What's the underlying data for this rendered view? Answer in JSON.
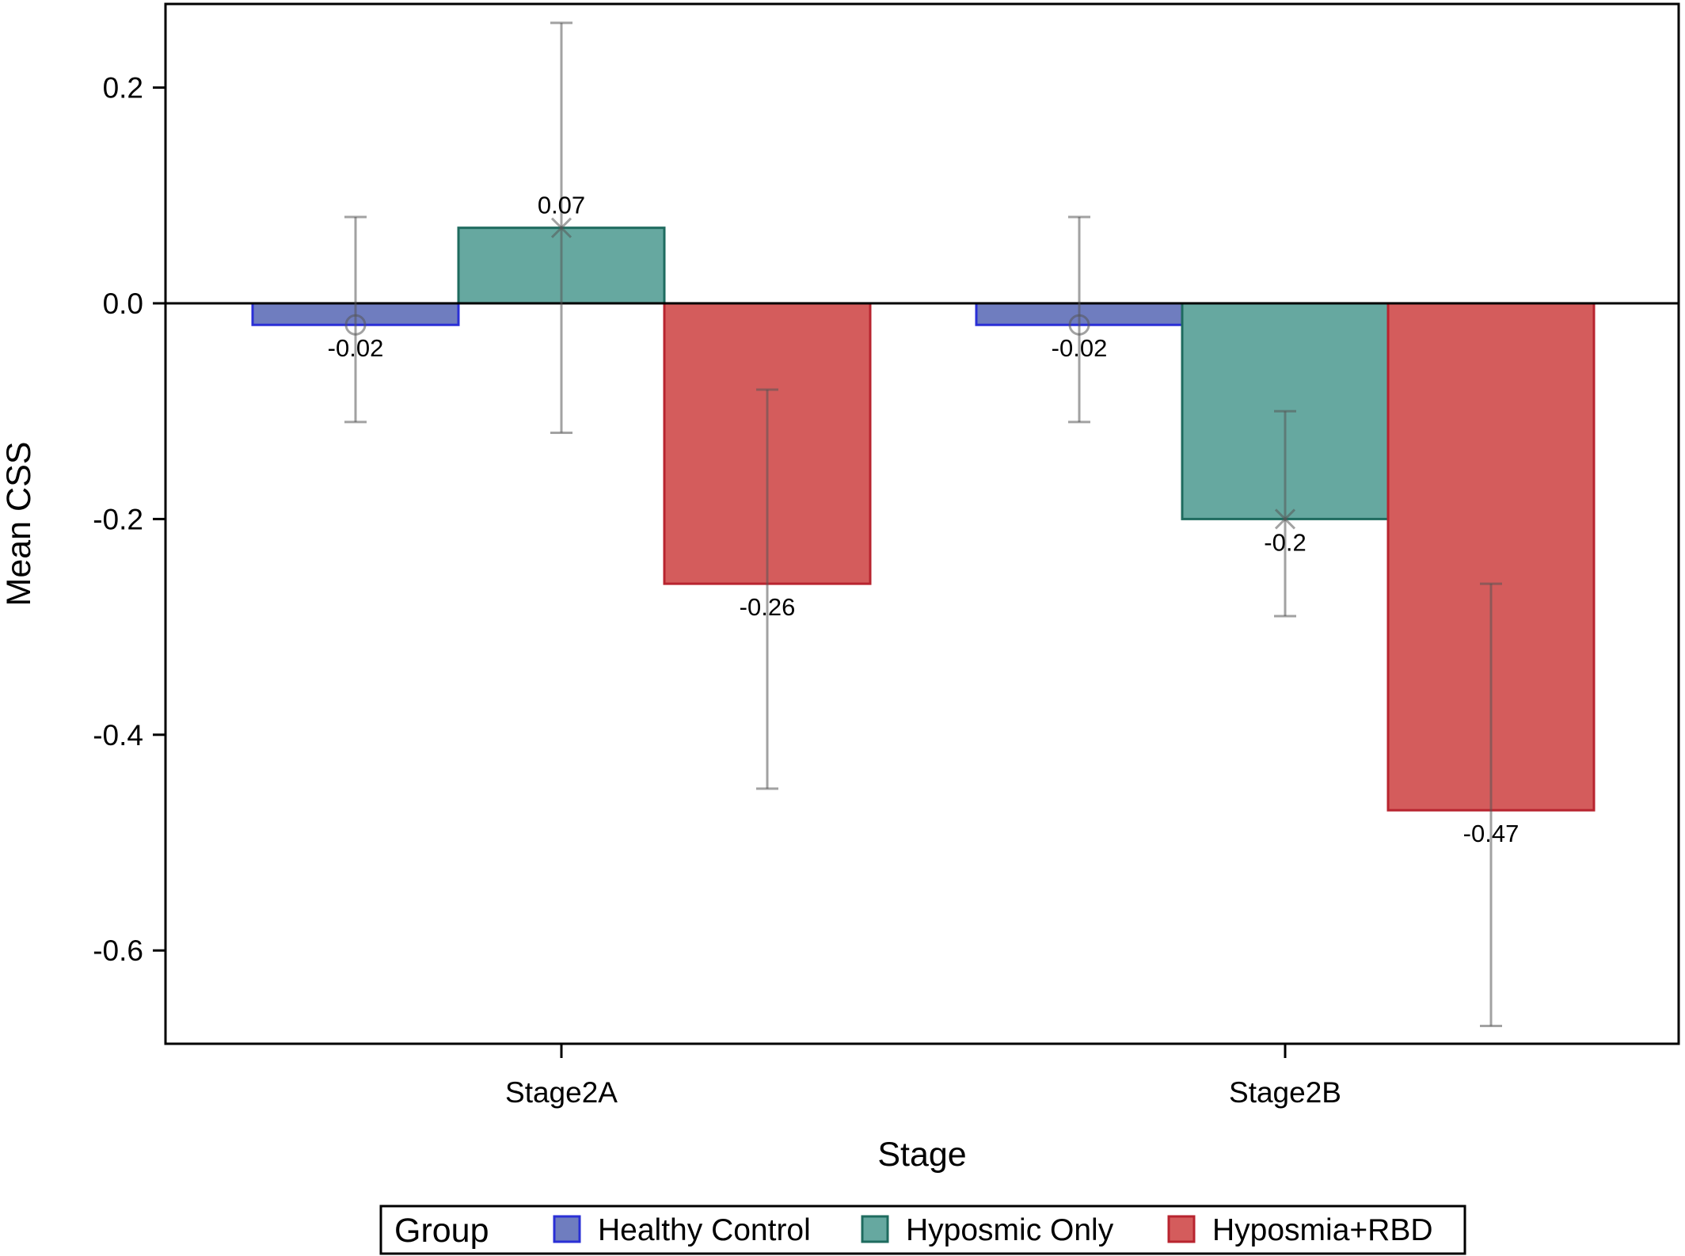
{
  "chart_data": {
    "type": "bar",
    "title": "",
    "xlabel": "Stage",
    "ylabel": "Mean CSS",
    "categories": [
      "Stage2A",
      "Stage2B"
    ],
    "ylim": [
      -0.69,
      0.26
    ],
    "yticks": [
      0.2,
      0.0,
      -0.2,
      -0.4,
      -0.6
    ],
    "ytick_labels": [
      "0.2",
      "0.0",
      "-0.2",
      "-0.4",
      "-0.6"
    ],
    "grid": false,
    "reference_line": 0,
    "legend": {
      "title": "Group",
      "position": "bottom"
    },
    "series": [
      {
        "name": "Healthy Control",
        "fill": "#6f7dbf",
        "stroke": "#2a2fd6",
        "marker": "circle",
        "values": [
          -0.02,
          -0.02
        ],
        "labels": [
          "-0.02",
          "-0.02"
        ],
        "error_low": [
          -0.11,
          -0.11
        ],
        "error_high": [
          0.08,
          0.08
        ]
      },
      {
        "name": "Hyposmic Only",
        "fill": "#66a8a0",
        "stroke": "#1f6b5f",
        "marker": "x",
        "values": [
          0.07,
          -0.2
        ],
        "labels": [
          "0.07",
          "-0.2"
        ],
        "error_low": [
          -0.12,
          -0.29
        ],
        "error_high": [
          0.26,
          -0.1
        ]
      },
      {
        "name": "Hyposmia+RBD",
        "fill": "#d45c5c",
        "stroke": "#b8242f",
        "marker": "none",
        "values": [
          -0.26,
          -0.47
        ],
        "labels": [
          "-0.26",
          "-0.47"
        ],
        "error_low": [
          -0.45,
          -0.67
        ],
        "error_high": [
          -0.08,
          -0.26
        ]
      }
    ]
  }
}
